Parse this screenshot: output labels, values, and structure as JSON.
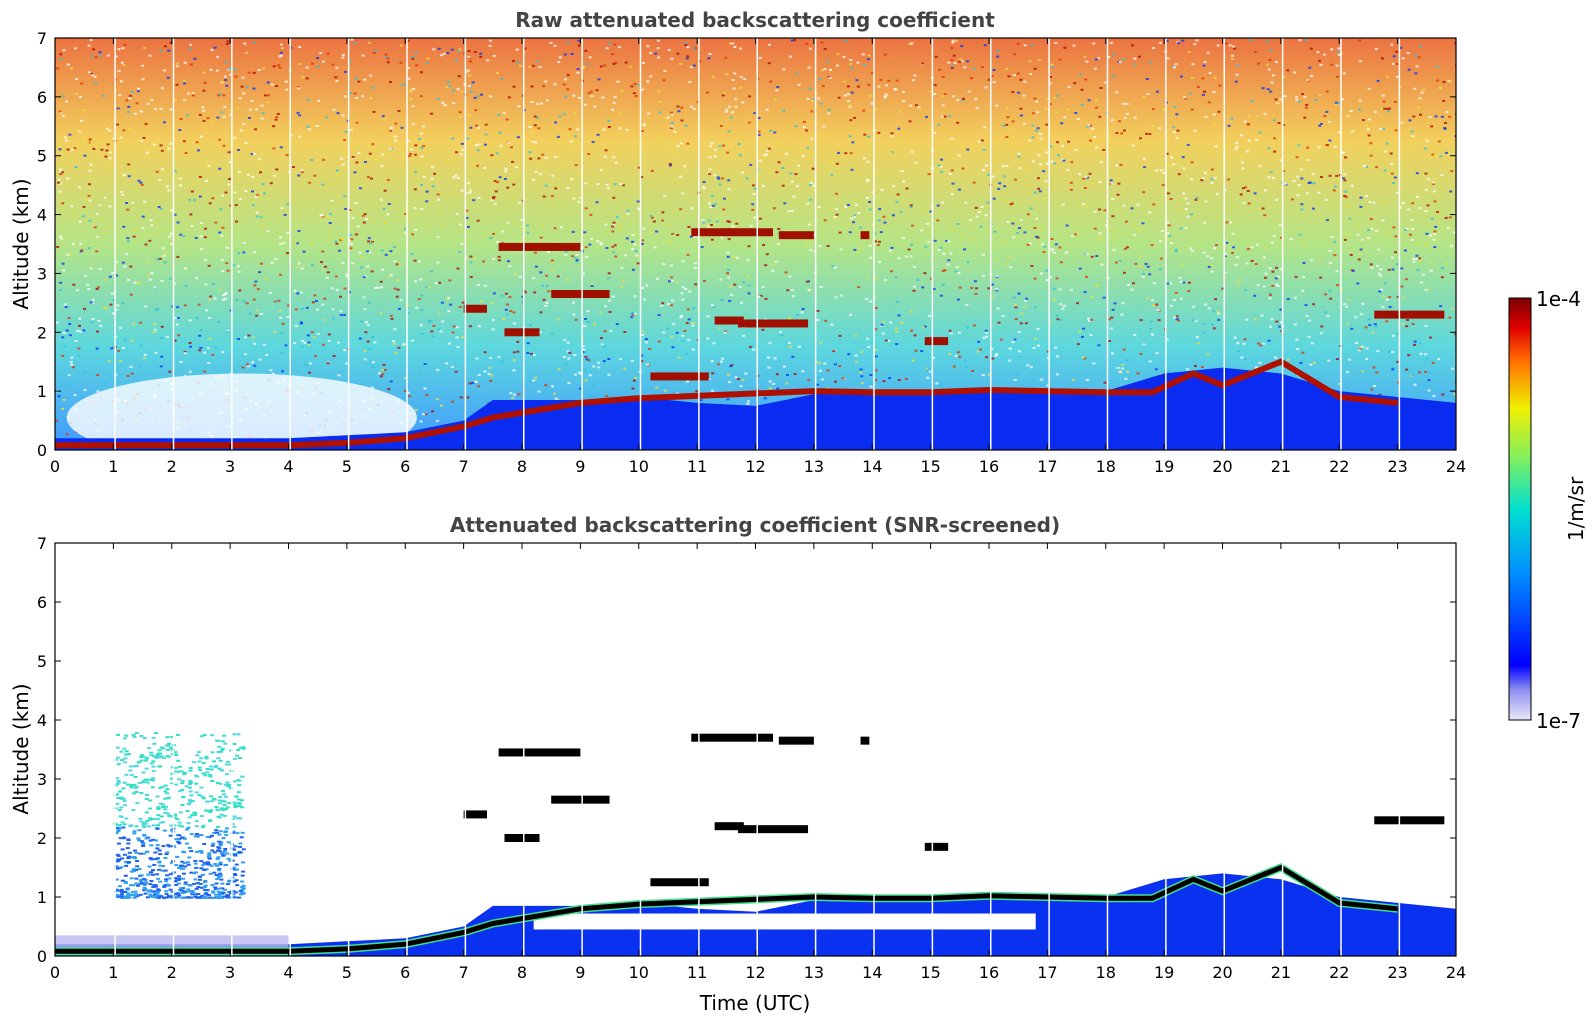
{
  "chart_data": [
    {
      "type": "heatmap",
      "title": "Raw attenuated backscattering coefficient",
      "xlabel": "",
      "ylabel": "Altitude (km)",
      "xlim": [
        0,
        24
      ],
      "ylim": [
        0,
        7
      ],
      "xticks": [
        "0",
        "1",
        "2",
        "3",
        "4",
        "5",
        "6",
        "7",
        "8",
        "9",
        "10",
        "11",
        "12",
        "13",
        "14",
        "15",
        "16",
        "17",
        "18",
        "19",
        "20",
        "21",
        "22",
        "23",
        "24"
      ],
      "yticks": [
        "0",
        "1",
        "2",
        "3",
        "4",
        "5",
        "6",
        "7"
      ],
      "colorscale": "jet (log)",
      "aerosol_layer_top": {
        "time_utc": [
          0,
          4,
          5,
          6,
          7,
          7.5,
          8,
          9,
          10,
          11,
          12,
          13,
          14,
          15,
          16,
          17,
          18,
          19,
          20,
          21,
          22,
          23,
          24
        ],
        "altitude_km": [
          0.2,
          0.2,
          0.25,
          0.3,
          0.5,
          0.85,
          0.85,
          0.85,
          0.9,
          0.8,
          0.75,
          0.95,
          0.95,
          0.95,
          1.0,
          1.0,
          1.0,
          1.3,
          1.4,
          1.3,
          1.0,
          0.9,
          0.8
        ]
      },
      "cloud_layer": {
        "time_utc": [
          0,
          4,
          5,
          6,
          7,
          7.5,
          9,
          10,
          13,
          14,
          15,
          16,
          17,
          18,
          18.8,
          19.5,
          20,
          21,
          22,
          23
        ],
        "altitude_km": [
          0.08,
          0.08,
          0.12,
          0.2,
          0.4,
          0.55,
          0.8,
          0.88,
          1.0,
          0.98,
          0.98,
          1.02,
          1.0,
          0.98,
          0.98,
          1.3,
          1.1,
          1.5,
          0.9,
          0.8
        ]
      },
      "cloud_patches": [
        {
          "t0": 7.6,
          "t1": 9.0,
          "alt_km": 3.45
        },
        {
          "t0": 8.5,
          "t1": 9.5,
          "alt_km": 2.65
        },
        {
          "t0": 7.0,
          "t1": 7.4,
          "alt_km": 2.4
        },
        {
          "t0": 7.7,
          "t1": 8.3,
          "alt_km": 2.0
        },
        {
          "t0": 10.9,
          "t1": 12.3,
          "alt_km": 3.7
        },
        {
          "t0": 11.3,
          "t1": 11.8,
          "alt_km": 2.2
        },
        {
          "t0": 11.7,
          "t1": 12.9,
          "alt_km": 2.15
        },
        {
          "t0": 12.4,
          "t1": 13.0,
          "alt_km": 3.65
        },
        {
          "t0": 13.8,
          "t1": 13.95,
          "alt_km": 3.65
        },
        {
          "t0": 10.2,
          "t1": 11.2,
          "alt_km": 1.25
        },
        {
          "t0": 14.9,
          "t1": 15.3,
          "alt_km": 1.85
        },
        {
          "t0": 22.6,
          "t1": 23.8,
          "alt_km": 2.3
        }
      ]
    },
    {
      "type": "heatmap",
      "title": "Attenuated backscattering coefficient (SNR-screened)",
      "xlabel": "Time (UTC)",
      "ylabel": "Altitude (km)",
      "xlim": [
        0,
        24
      ],
      "ylim": [
        0,
        7
      ],
      "xticks": [
        "0",
        "1",
        "2",
        "3",
        "4",
        "5",
        "6",
        "7",
        "8",
        "9",
        "10",
        "11",
        "12",
        "13",
        "14",
        "15",
        "16",
        "17",
        "18",
        "19",
        "20",
        "21",
        "22",
        "23",
        "24"
      ],
      "yticks": [
        "0",
        "1",
        "2",
        "3",
        "4",
        "5",
        "6",
        "7"
      ],
      "colorscale": "jet (log)",
      "early_aerosol_plume": {
        "t0": 1.0,
        "t1": 3.2,
        "alt_bottom_km": 1.0,
        "alt_top_km": 3.8
      }
    }
  ],
  "colorbar": {
    "label": "1/m/sr",
    "max_label": "1e-4",
    "min_label": "1e-7",
    "scale": "log",
    "colors": [
      "#e8e8f8",
      "#c0c0f0",
      "#8080f0",
      "#0000ff",
      "#0060ff",
      "#00b0ff",
      "#00e0d0",
      "#40f080",
      "#a0f040",
      "#f0f000",
      "#ffb000",
      "#ff6000",
      "#e00000",
      "#800000"
    ]
  }
}
